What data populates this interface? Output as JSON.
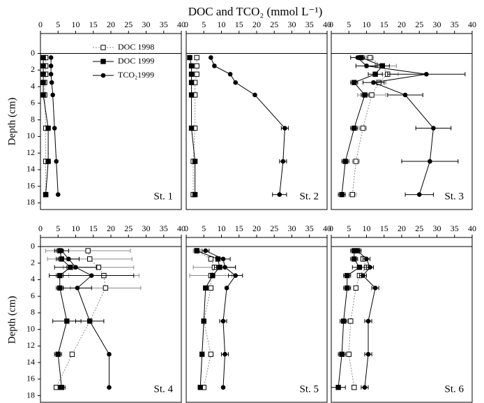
{
  "title": "DOC and TCO₂ (mmol L⁻¹)",
  "chart_data": [
    {
      "type": "scatter",
      "label": "St. 1",
      "ylabel": "Depth (cm)",
      "xlim": [
        0,
        40
      ],
      "xticks": [
        0,
        5,
        10,
        15,
        20,
        25,
        30,
        35,
        40
      ],
      "ylim": [
        -2.4,
        18.8
      ],
      "yticks": [
        0,
        2,
        4,
        6,
        8,
        10,
        12,
        14,
        16,
        18
      ],
      "legend": "upper-left",
      "y": [
        0.5,
        1.5,
        2.5,
        3.5,
        5,
        9,
        13,
        17
      ],
      "series": [
        {
          "name": "DOC 1998",
          "color": "#888888",
          "marker": "open-square",
          "x": [
            1.5,
            1.5,
            1.5,
            1.2,
            1.2,
            1.5,
            1.5,
            1.5
          ]
        },
        {
          "name": "DOC 1999",
          "color": "#000000",
          "marker": "square",
          "x": [
            0.8,
            0.8,
            0.8,
            0.8,
            0.8,
            2.2,
            2.2,
            1.5
          ]
        },
        {
          "name": "TCO₂1999",
          "color": "#000000",
          "marker": "circle",
          "x": [
            3,
            3,
            3,
            3.2,
            3.5,
            4,
            4.5,
            5
          ]
        }
      ]
    },
    {
      "type": "scatter",
      "label": "St. 2",
      "xlim": [
        0,
        40
      ],
      "xticks": [
        0,
        5,
        10,
        15,
        20,
        25,
        30,
        35,
        40
      ],
      "ylim": [
        -2.4,
        18.8
      ],
      "y": [
        0.5,
        1.5,
        2.5,
        3.5,
        5,
        9,
        13,
        17
      ],
      "series": [
        {
          "color": "#888888",
          "marker": "open-square",
          "x": [
            3,
            3,
            3,
            2.5,
            2.5,
            2.5,
            2,
            2
          ]
        },
        {
          "color": "#000000",
          "marker": "square",
          "x": [
            1,
            1.5,
            1.5,
            1.5,
            1.5,
            1.5,
            2.5,
            2.5
          ]
        },
        {
          "color": "#000000",
          "marker": "circle",
          "x": [
            7,
            8,
            12.5,
            14,
            19.5,
            28,
            27.5,
            26.5
          ],
          "xerr": [
            null,
            null,
            null,
            null,
            null,
            1,
            1,
            2
          ]
        }
      ]
    },
    {
      "type": "scatter",
      "label": "St. 3",
      "xlim": [
        0,
        40
      ],
      "xticks": [
        0,
        5,
        10,
        15,
        20,
        25,
        30,
        35,
        40
      ],
      "ylim": [
        -2.4,
        18.8
      ],
      "y": [
        0.5,
        1.5,
        2.5,
        3.5,
        5,
        9,
        13,
        17
      ],
      "series": [
        {
          "color": "#888888",
          "marker": "open-square",
          "x": [
            11,
            14.5,
            16,
            13.5,
            11.5,
            9,
            7,
            6
          ],
          "xerr": [
            1,
            4,
            3,
            2,
            4,
            1,
            1,
            1
          ]
        },
        {
          "color": "#000000",
          "marker": "square",
          "x": [
            8.5,
            14.5,
            12.5,
            6.5,
            9.5,
            6.5,
            4,
            3
          ],
          "xerr": [
            1,
            2,
            2,
            1,
            1,
            1,
            1,
            1
          ]
        },
        {
          "color": "#000000",
          "marker": "circle",
          "x": [
            7.5,
            10,
            27,
            12,
            21,
            29,
            28,
            25
          ],
          "xerr": [
            2,
            3,
            11,
            3,
            5,
            5,
            8,
            4
          ]
        }
      ]
    },
    {
      "type": "scatter",
      "label": "St. 4",
      "ylabel": "Depth (cm)",
      "xlim": [
        0,
        40
      ],
      "xticks": [
        0,
        5,
        10,
        15,
        20,
        25,
        30,
        35,
        40
      ],
      "ylim": [
        -1.1,
        18.8
      ],
      "yticks": [
        0,
        2,
        4,
        6,
        8,
        10,
        12,
        14,
        16,
        18
      ],
      "y": [
        0.5,
        1.5,
        2.5,
        3.5,
        5,
        9,
        13,
        17
      ],
      "series": [
        {
          "color": "#888888",
          "marker": "open-square",
          "x": [
            13.5,
            14,
            16.5,
            18,
            18.5,
            14,
            9,
            4.5
          ],
          "xerr": [
            12,
            12,
            10,
            10,
            10,
            null,
            null,
            null
          ]
        },
        {
          "color": "#000000",
          "marker": "square",
          "x": [
            5.5,
            6,
            8.5,
            5.5,
            5.5,
            7.5,
            5,
            6
          ],
          "xerr": [
            1,
            1.5,
            1,
            1,
            1,
            4,
            1,
            1
          ]
        },
        {
          "color": "#000000",
          "marker": "circle",
          "x": [
            6,
            8,
            10,
            14.5,
            10.5,
            14,
            19.5,
            19.5
          ],
          "xerr": [
            2,
            3,
            6,
            12,
            4,
            4,
            null,
            null
          ]
        }
      ]
    },
    {
      "type": "scatter",
      "label": "St. 5",
      "xlim": [
        0,
        40
      ],
      "xticks": [
        0,
        5,
        10,
        15,
        20,
        25,
        30,
        35,
        40
      ],
      "ylim": [
        -1.1,
        18.8
      ],
      "y": [
        0.5,
        1.5,
        2.5,
        3.5,
        5,
        9,
        13,
        17
      ],
      "series": [
        {
          "color": "#888888",
          "marker": "open-square",
          "x": [
            3,
            7,
            8,
            7,
            7,
            5,
            7,
            5
          ],
          "xerr": [
            1,
            null,
            6,
            6,
            null,
            null,
            null,
            null
          ]
        },
        {
          "color": "#000000",
          "marker": "square",
          "x": [
            3,
            9,
            9.5,
            7.5,
            5.5,
            5,
            4.5,
            4
          ]
        },
        {
          "color": "#000000",
          "marker": "circle",
          "x": [
            5.5,
            10.5,
            11,
            14,
            11.5,
            10.5,
            11,
            10.5
          ],
          "xerr": [
            1,
            2,
            3,
            2,
            null,
            1,
            1,
            null
          ]
        }
      ]
    },
    {
      "type": "scatter",
      "label": "St. 6",
      "xlim": [
        0,
        40
      ],
      "xticks": [
        0,
        5,
        10,
        15,
        20,
        25,
        30,
        35,
        40
      ],
      "ylim": [
        -1.1,
        18.8
      ],
      "y": [
        0.5,
        1.5,
        2.5,
        3.5,
        5,
        9,
        13,
        17
      ],
      "series": [
        {
          "color": "#888888",
          "marker": "open-square",
          "x": [
            7.5,
            9,
            10,
            8,
            7,
            5.5,
            5,
            6.5
          ]
        },
        {
          "color": "#000000",
          "marker": "square",
          "x": [
            6.5,
            6.5,
            8,
            4.5,
            4.5,
            3.5,
            3,
            2
          ],
          "xerr": [
            1,
            1,
            2,
            1,
            1,
            1,
            1,
            2
          ]
        },
        {
          "color": "#000000",
          "marker": "circle",
          "x": [
            7.5,
            10,
            11,
            9,
            12.5,
            10.5,
            10.5,
            9.5
          ],
          "xerr": [
            1,
            1,
            1,
            1,
            1,
            1,
            1,
            1
          ]
        }
      ]
    }
  ]
}
